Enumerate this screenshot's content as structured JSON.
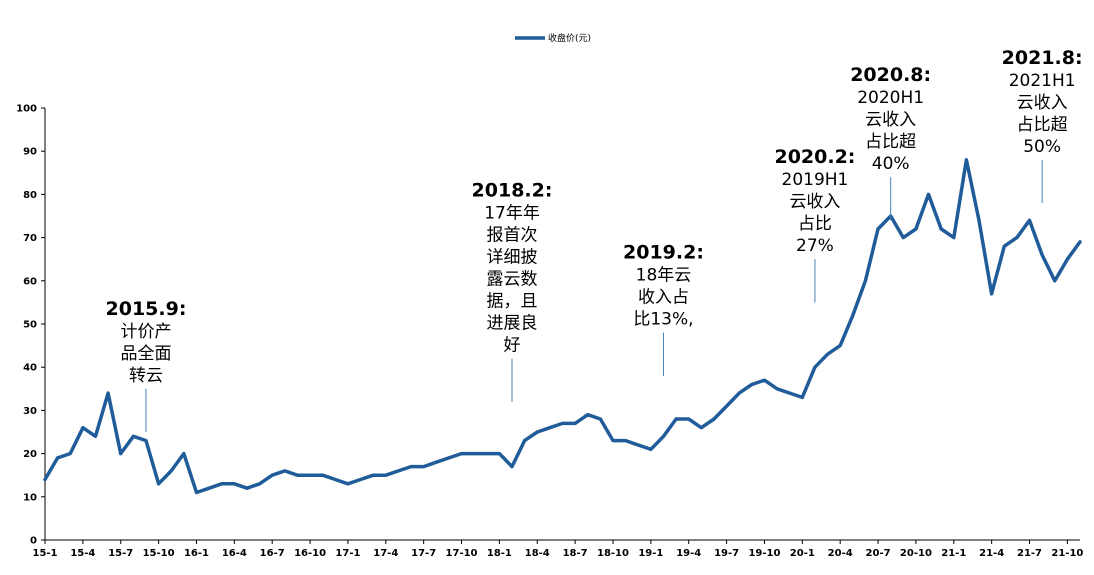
{
  "chart_data": {
    "type": "line",
    "title": "",
    "xlabel": "",
    "ylabel": "",
    "ylim": [
      0,
      100
    ],
    "yticks": [
      0,
      10,
      20,
      30,
      40,
      50,
      60,
      70,
      80,
      90,
      100
    ],
    "x_tick_labels": [
      "15-1",
      "15-4",
      "15-7",
      "15-10",
      "16-1",
      "16-4",
      "16-7",
      "16-10",
      "17-1",
      "17-4",
      "17-7",
      "17-10",
      "18-1",
      "18-4",
      "18-7",
      "18-10",
      "19-1",
      "19-4",
      "19-7",
      "19-10",
      "20-1",
      "20-4",
      "20-7",
      "20-10",
      "21-1",
      "21-4",
      "21-7",
      "21-10"
    ],
    "legend": {
      "position": "top-center",
      "entries": [
        "收盘价(元)"
      ]
    },
    "grid": false,
    "series": [
      {
        "name": "收盘价(元)",
        "color": "#1f5c99",
        "points": [
          [
            "15-1",
            14
          ],
          [
            "15-2",
            19
          ],
          [
            "15-3",
            20
          ],
          [
            "15-4",
            26
          ],
          [
            "15-5",
            24
          ],
          [
            "15-6",
            34
          ],
          [
            "15-7",
            20
          ],
          [
            "15-8",
            24
          ],
          [
            "15-9",
            23
          ],
          [
            "15-10",
            13
          ],
          [
            "15-11",
            16
          ],
          [
            "15-12",
            20
          ],
          [
            "16-1",
            11
          ],
          [
            "16-2",
            12
          ],
          [
            "16-3",
            13
          ],
          [
            "16-4",
            13
          ],
          [
            "16-5",
            12
          ],
          [
            "16-6",
            13
          ],
          [
            "16-7",
            15
          ],
          [
            "16-8",
            16
          ],
          [
            "16-9",
            15
          ],
          [
            "16-10",
            15
          ],
          [
            "16-11",
            15
          ],
          [
            "16-12",
            14
          ],
          [
            "17-1",
            13
          ],
          [
            "17-2",
            14
          ],
          [
            "17-3",
            15
          ],
          [
            "17-4",
            15
          ],
          [
            "17-5",
            16
          ],
          [
            "17-6",
            17
          ],
          [
            "17-7",
            17
          ],
          [
            "17-8",
            18
          ],
          [
            "17-9",
            19
          ],
          [
            "17-10",
            20
          ],
          [
            "17-11",
            20
          ],
          [
            "17-12",
            20
          ],
          [
            "18-1",
            20
          ],
          [
            "18-2",
            17
          ],
          [
            "18-3",
            23
          ],
          [
            "18-4",
            25
          ],
          [
            "18-5",
            26
          ],
          [
            "18-6",
            27
          ],
          [
            "18-7",
            27
          ],
          [
            "18-8",
            29
          ],
          [
            "18-9",
            28
          ],
          [
            "18-10",
            23
          ],
          [
            "18-11",
            23
          ],
          [
            "18-12",
            22
          ],
          [
            "19-1",
            21
          ],
          [
            "19-2",
            24
          ],
          [
            "19-3",
            28
          ],
          [
            "19-4",
            28
          ],
          [
            "19-5",
            26
          ],
          [
            "19-6",
            28
          ],
          [
            "19-7",
            31
          ],
          [
            "19-8",
            34
          ],
          [
            "19-9",
            36
          ],
          [
            "19-10",
            37
          ],
          [
            "19-11",
            35
          ],
          [
            "19-12",
            34
          ],
          [
            "20-1",
            33
          ],
          [
            "20-2",
            40
          ],
          [
            "20-3",
            43
          ],
          [
            "20-4",
            45
          ],
          [
            "20-5",
            52
          ],
          [
            "20-6",
            60
          ],
          [
            "20-7",
            72
          ],
          [
            "20-8",
            75
          ],
          [
            "20-9",
            70
          ],
          [
            "20-10",
            72
          ],
          [
            "20-11",
            80
          ],
          [
            "20-12",
            72
          ],
          [
            "21-1",
            70
          ],
          [
            "21-2",
            88
          ],
          [
            "21-3",
            74
          ],
          [
            "21-4",
            57
          ],
          [
            "21-5",
            68
          ],
          [
            "21-6",
            70
          ],
          [
            "21-7",
            74
          ],
          [
            "21-8",
            66
          ],
          [
            "21-9",
            60
          ],
          [
            "21-10",
            65
          ],
          [
            "21-11",
            69
          ]
        ]
      }
    ],
    "annotations": [
      {
        "id": "a2015-9",
        "at": "15-9",
        "value": 35,
        "title": "2015.9:",
        "lines": [
          "计价产",
          "品全面",
          "转云"
        ]
      },
      {
        "id": "a2018-2",
        "at": "18-2",
        "value": 42,
        "title": "2018.2:",
        "lines": [
          "17年年",
          "报首次",
          "详细披",
          "露云数",
          "据，且",
          "进展良",
          "好"
        ]
      },
      {
        "id": "a2019-2",
        "at": "19-2",
        "value": 48,
        "title": "2019.2:",
        "lines": [
          "18年云",
          "收入占",
          "比13%,"
        ]
      },
      {
        "id": "a2020-2",
        "at": "20-2",
        "value": 65,
        "title": "2020.2:",
        "lines": [
          "2019H1",
          "云收入",
          "占比",
          "27%"
        ]
      },
      {
        "id": "a2020-8",
        "at": "20-8",
        "value": 84,
        "title": "2020.8:",
        "lines": [
          "2020H1",
          "云收入",
          "占比超",
          "40%"
        ]
      },
      {
        "id": "a2021-8",
        "at": "21-8",
        "value": 88,
        "title": "2021.8:",
        "lines": [
          "2021H1",
          "云收入",
          "占比超",
          "50%"
        ]
      }
    ]
  }
}
